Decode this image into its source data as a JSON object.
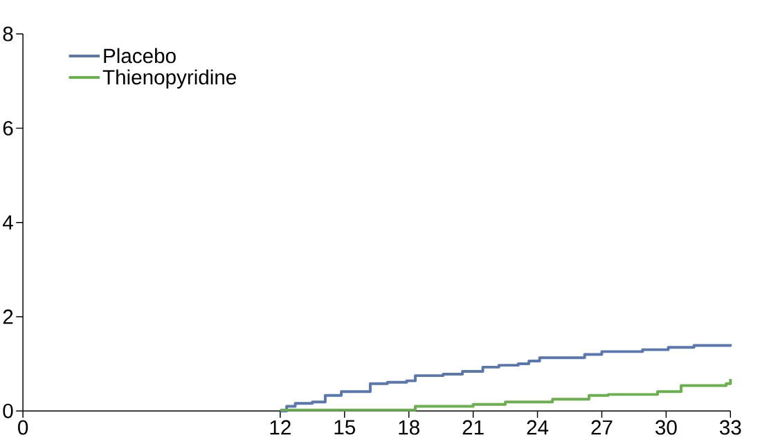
{
  "chart_data": {
    "type": "step",
    "xlim": [
      0,
      33
    ],
    "ylim": [
      0,
      8
    ],
    "xticks": [
      0,
      12,
      15,
      18,
      21,
      24,
      27,
      30,
      33
    ],
    "yticks": [
      0,
      2,
      4,
      6,
      8
    ],
    "legend": "top left",
    "grid": false,
    "marker": "none",
    "line_style": "solid",
    "series": [
      {
        "name": "Placebo",
        "color": "#5a77b0",
        "x": [
          12,
          12.3,
          12.7,
          13.5,
          14.1,
          14.85,
          15.9,
          16.2,
          17,
          17.9,
          18.3,
          19.6,
          20.5,
          21.45,
          22.2,
          23.1,
          23.6,
          24.1,
          26.2,
          27,
          28.9,
          30.1,
          31.3,
          33
        ],
        "values": [
          0,
          0.1,
          0.16,
          0.19,
          0.33,
          0.41,
          0.41,
          0.58,
          0.61,
          0.64,
          0.75,
          0.78,
          0.84,
          0.93,
          0.97,
          1.0,
          1.06,
          1.13,
          1.2,
          1.26,
          1.3,
          1.35,
          1.39,
          1.42
        ]
      },
      {
        "name": "Thienopyridine",
        "color": "#6ab04c",
        "x": [
          12,
          18.3,
          21,
          22.5,
          24.7,
          26.4,
          27.3,
          29.6,
          30.7,
          32.8,
          33
        ],
        "values": [
          0.02,
          0.1,
          0.14,
          0.19,
          0.25,
          0.33,
          0.35,
          0.41,
          0.54,
          0.58,
          0.68
        ]
      }
    ]
  }
}
